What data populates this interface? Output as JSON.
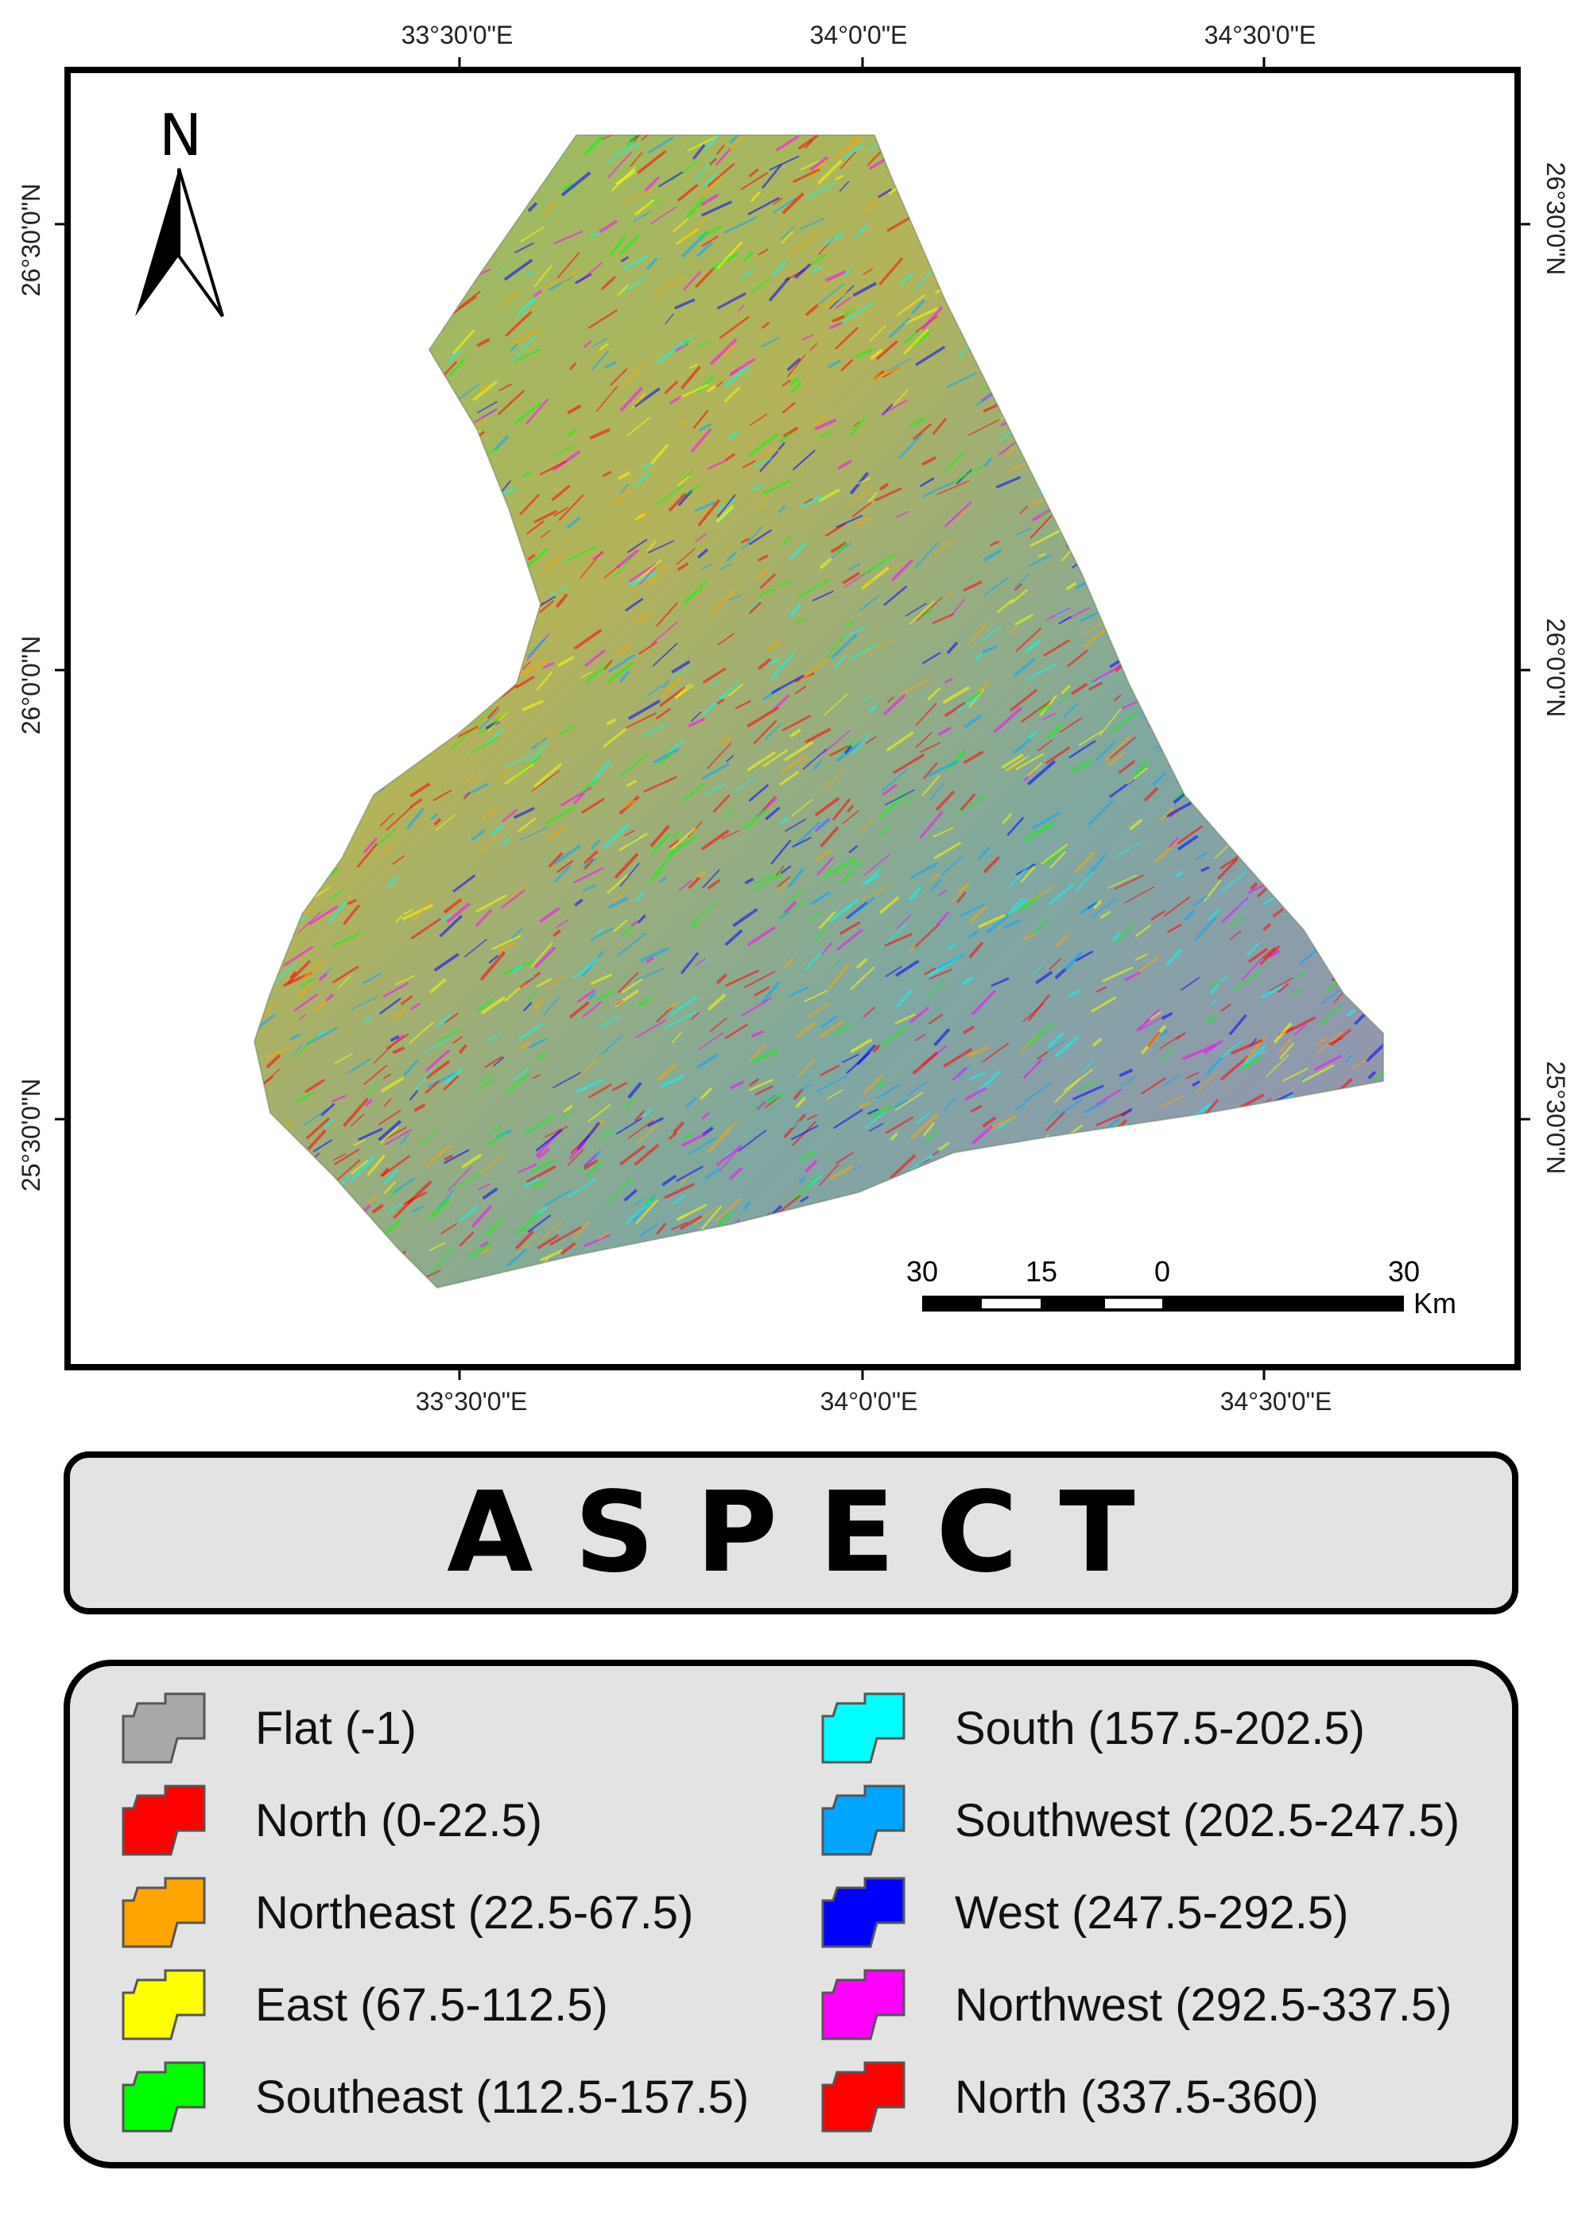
{
  "map": {
    "graticule": {
      "top_longitudes": [
        "33°30'0\"E",
        "34°0'0\"E",
        "34°30'0\"E"
      ],
      "bottom_longitudes": [
        "33°30'0\"E",
        "34°0'0\"E",
        "34°30'0\"E"
      ],
      "left_latitudes": [
        "26°30'0\"N",
        "26°0'0\"N",
        "25°30'0\"N"
      ],
      "right_latitudes": [
        "26°30'0\"N",
        "26°0'0\"N",
        "25°30'0\"N"
      ]
    },
    "north_arrow": {
      "label": "N"
    },
    "scale_bar": {
      "ticks": [
        "30",
        "15",
        "0",
        "30"
      ],
      "unit": "Km"
    }
  },
  "title": "ASPECT",
  "legend": {
    "items": [
      {
        "label": "Flat (-1)",
        "color": "#a9a9a9"
      },
      {
        "label": "North (0-22.5)",
        "color": "#ff0000"
      },
      {
        "label": "Northeast (22.5-67.5)",
        "color": "#ffa500"
      },
      {
        "label": "East (67.5-112.5)",
        "color": "#ffff00"
      },
      {
        "label": "Southeast (112.5-157.5)",
        "color": "#00ff00"
      },
      {
        "label": "South (157.5-202.5)",
        "color": "#00ffff"
      },
      {
        "label": "Southwest (202.5-247.5)",
        "color": "#00a5ff"
      },
      {
        "label": "West (247.5-292.5)",
        "color": "#0000ff"
      },
      {
        "label": "Northwest (292.5-337.5)",
        "color": "#ff00ff"
      },
      {
        "label": "North (337.5-360)",
        "color": "#ff0000"
      }
    ]
  }
}
